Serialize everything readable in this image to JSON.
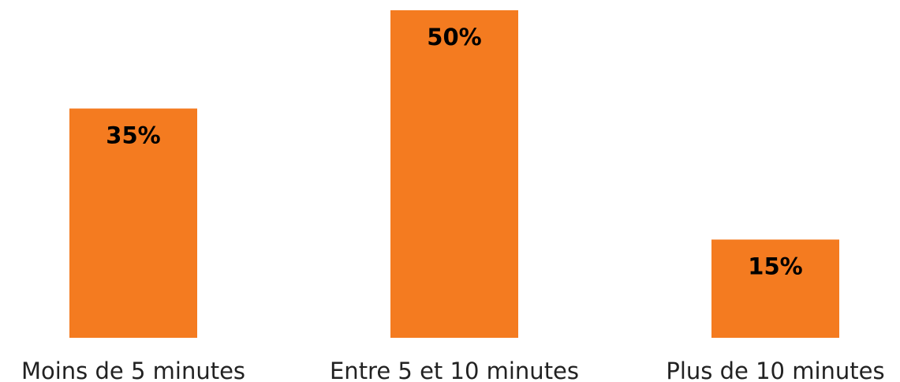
{
  "chart_data": {
    "type": "bar",
    "categories": [
      "Moins de 5 minutes",
      "Entre 5 et 10 minutes",
      "Plus de 10 minutes"
    ],
    "values": [
      35,
      50,
      15
    ],
    "data_labels": [
      "35%",
      "50%",
      "15%"
    ],
    "ylim": [
      0,
      50
    ],
    "grid": false,
    "legend": "none",
    "bar_color": "#F47B20"
  }
}
